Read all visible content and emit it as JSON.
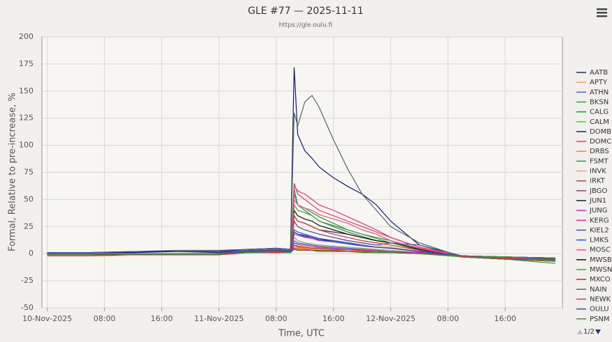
{
  "chart_data": {
    "type": "line",
    "title": "GLE #77 — 2025-11-11",
    "subtitle": "https://gle.oulu.fi",
    "x_label": "Time, UTC",
    "y_label": "Formal, Relative to pre-increase, %",
    "legend_page": "1/2",
    "legend_position": "right",
    "grid": true,
    "xlim": [
      "2025-11-09T23:15",
      "2025-11-13T00:00"
    ],
    "xticks": [
      {
        "value": "2025-11-10T00:00",
        "label": "10-Nov-2025"
      },
      {
        "value": "2025-11-10T08:00",
        "label": "08:00"
      },
      {
        "value": "2025-11-10T16:00",
        "label": "16:00"
      },
      {
        "value": "2025-11-11T00:00",
        "label": "11-Nov-2025"
      },
      {
        "value": "2025-11-11T08:00",
        "label": "08:00"
      },
      {
        "value": "2025-11-11T16:00",
        "label": "16:00"
      },
      {
        "value": "2025-11-12T00:00",
        "label": "12-Nov-2025"
      },
      {
        "value": "2025-11-12T08:00",
        "label": "08:00"
      },
      {
        "value": "2025-11-12T16:00",
        "label": "16:00"
      }
    ],
    "ylim": [
      -50,
      200
    ],
    "yticks": [
      -50,
      -25,
      0,
      25,
      50,
      75,
      100,
      125,
      150,
      175,
      200
    ],
    "x": [
      "2025-11-10T00:00",
      "2025-11-10T06:00",
      "2025-11-10T12:00",
      "2025-11-10T18:00",
      "2025-11-11T00:00",
      "2025-11-11T04:00",
      "2025-11-11T08:00",
      "2025-11-11T10:00",
      "2025-11-11T10:30",
      "2025-11-11T11:00",
      "2025-11-11T12:00",
      "2025-11-11T13:00",
      "2025-11-11T14:00",
      "2025-11-11T16:00",
      "2025-11-11T18:00",
      "2025-11-11T20:00",
      "2025-11-11T22:00",
      "2025-11-12T00:00",
      "2025-11-12T04:00",
      "2025-11-12T10:00",
      "2025-11-12T16:00",
      "2025-11-12T23:00"
    ],
    "series": [
      {
        "name": "AATB",
        "color": "#1f2a6e",
        "values": [
          1,
          1,
          2,
          2,
          1,
          3,
          4,
          3,
          35,
          30,
          28,
          25,
          22,
          20,
          18,
          15,
          12,
          10,
          5,
          -2,
          -4,
          -5
        ]
      },
      {
        "name": "APTY",
        "color": "#f4a460",
        "values": [
          0,
          0,
          0,
          0,
          0,
          2,
          2,
          2,
          10,
          8,
          7,
          6,
          5,
          4,
          3,
          3,
          2,
          2,
          0,
          -2,
          -3,
          -4
        ]
      },
      {
        "name": "ATHN",
        "color": "#5b5bd6",
        "values": [
          -1,
          -1,
          0,
          0,
          0,
          2,
          3,
          2,
          12,
          10,
          9,
          8,
          7,
          6,
          5,
          4,
          3,
          2,
          1,
          -2,
          -3,
          -4
        ]
      },
      {
        "name": "BKSN",
        "color": "#3a9a3a",
        "values": [
          0,
          0,
          0,
          0,
          0,
          1,
          2,
          1,
          8,
          6,
          5,
          4,
          3,
          3,
          2,
          2,
          1,
          1,
          0,
          -3,
          -5,
          -9
        ]
      },
      {
        "name": "CALG",
        "color": "#2e8b3e",
        "values": [
          0,
          0,
          0,
          0,
          0,
          2,
          3,
          2,
          60,
          45,
          40,
          35,
          30,
          25,
          20,
          16,
          12,
          10,
          4,
          -3,
          -5,
          -6
        ]
      },
      {
        "name": "CALM",
        "color": "#6bbb4a",
        "values": [
          0,
          0,
          0,
          0,
          0,
          1,
          2,
          1,
          15,
          12,
          10,
          9,
          8,
          7,
          6,
          5,
          4,
          3,
          1,
          -2,
          -4,
          -5
        ]
      },
      {
        "name": "DOMB",
        "color": "#191970",
        "values": [
          1,
          1,
          1,
          2,
          2,
          4,
          5,
          4,
          172,
          110,
          95,
          88,
          80,
          70,
          62,
          55,
          45,
          30,
          8,
          -3,
          -5,
          -7
        ]
      },
      {
        "name": "DOMC",
        "color": "#e0405a",
        "values": [
          0,
          0,
          0,
          0,
          0,
          3,
          4,
          3,
          65,
          55,
          50,
          45,
          40,
          35,
          30,
          25,
          20,
          15,
          6,
          -2,
          -4,
          -6
        ]
      },
      {
        "name": "DRBS",
        "color": "#f08a30",
        "values": [
          0,
          0,
          0,
          0,
          0,
          1,
          1,
          1,
          6,
          5,
          5,
          4,
          4,
          3,
          3,
          2,
          2,
          1,
          0,
          -2,
          -3,
          -4
        ]
      },
      {
        "name": "FSMT",
        "color": "#2f9a40",
        "values": [
          0,
          0,
          0,
          0,
          0,
          2,
          3,
          2,
          55,
          45,
          42,
          38,
          34,
          28,
          22,
          18,
          15,
          12,
          4,
          -3,
          -5,
          -6
        ]
      },
      {
        "name": "INVK",
        "color": "#f5a050",
        "values": [
          0,
          0,
          0,
          0,
          0,
          2,
          2,
          2,
          30,
          25,
          22,
          20,
          18,
          15,
          12,
          10,
          8,
          6,
          2,
          -3,
          -5,
          -6
        ]
      },
      {
        "name": "IRKT",
        "color": "#d03030",
        "values": [
          -2,
          -2,
          -1,
          -1,
          -1,
          1,
          2,
          1,
          8,
          7,
          6,
          5,
          5,
          4,
          4,
          3,
          2,
          2,
          0,
          -2,
          -3,
          -4
        ]
      },
      {
        "name": "JBGO",
        "color": "#c020c0",
        "values": [
          0,
          0,
          0,
          0,
          0,
          1,
          2,
          1,
          10,
          9,
          8,
          7,
          6,
          5,
          4,
          4,
          3,
          2,
          1,
          -2,
          -3,
          -4
        ]
      },
      {
        "name": "JUN1",
        "color": "#101848",
        "values": [
          0,
          0,
          0,
          0,
          0,
          1,
          2,
          1,
          20,
          18,
          16,
          15,
          13,
          12,
          10,
          8,
          6,
          5,
          2,
          -2,
          -3,
          -4
        ]
      },
      {
        "name": "JUNG",
        "color": "#d030d0",
        "values": [
          0,
          0,
          0,
          0,
          0,
          1,
          2,
          1,
          18,
          17,
          15,
          14,
          12,
          11,
          9,
          7,
          6,
          5,
          2,
          -2,
          -3,
          -4
        ]
      },
      {
        "name": "KERG",
        "color": "#ff2a80",
        "values": [
          0,
          0,
          0,
          0,
          0,
          3,
          4,
          3,
          62,
          58,
          55,
          50,
          45,
          40,
          34,
          28,
          22,
          15,
          6,
          -2,
          -4,
          -6
        ]
      },
      {
        "name": "KIEL2",
        "color": "#4a50a8",
        "values": [
          1,
          1,
          2,
          3,
          3,
          4,
          5,
          4,
          30,
          25,
          22,
          20,
          18,
          15,
          12,
          10,
          8,
          10,
          8,
          -2,
          -4,
          -6
        ]
      },
      {
        "name": "LMKS",
        "color": "#3050d0",
        "values": [
          0,
          0,
          0,
          0,
          0,
          2,
          3,
          2,
          22,
          20,
          18,
          16,
          14,
          12,
          10,
          8,
          6,
          5,
          2,
          -2,
          -4,
          -5
        ]
      },
      {
        "name": "MOSC",
        "color": "#ff4a90",
        "values": [
          0,
          0,
          0,
          0,
          0,
          3,
          3,
          3,
          50,
          45,
          42,
          40,
          36,
          32,
          28,
          22,
          18,
          12,
          5,
          -2,
          -4,
          -5
        ]
      },
      {
        "name": "MWSB",
        "color": "#111111",
        "values": [
          0,
          0,
          0,
          0,
          0,
          2,
          3,
          2,
          40,
          35,
          32,
          30,
          26,
          22,
          18,
          15,
          12,
          10,
          4,
          -3,
          -5,
          -7
        ]
      },
      {
        "name": "MWSN",
        "color": "#40a040",
        "values": [
          0,
          0,
          0,
          0,
          0,
          2,
          3,
          2,
          45,
          40,
          38,
          35,
          30,
          26,
          22,
          18,
          14,
          10,
          3,
          -3,
          -5,
          -7
        ]
      },
      {
        "name": "MXCO",
        "color": "#e02020",
        "values": [
          -1,
          -1,
          -1,
          -1,
          -1,
          1,
          1,
          1,
          5,
          4,
          4,
          3,
          3,
          3,
          2,
          2,
          1,
          1,
          0,
          -2,
          -3,
          -4
        ]
      },
      {
        "name": "NAIN",
        "color": "#4a6a66",
        "values": [
          0,
          0,
          0,
          0,
          0,
          3,
          4,
          3,
          130,
          118,
          140,
          146,
          135,
          105,
          78,
          55,
          40,
          25,
          10,
          -3,
          -5,
          -6
        ]
      },
      {
        "name": "NEWK",
        "color": "#e03838",
        "values": [
          0,
          0,
          0,
          0,
          0,
          2,
          3,
          2,
          35,
          30,
          28,
          25,
          22,
          18,
          15,
          12,
          10,
          8,
          3,
          -3,
          -4,
          -6
        ]
      },
      {
        "name": "OULU",
        "color": "#2a48c8",
        "values": [
          0,
          0,
          0,
          0,
          0,
          2,
          3,
          2,
          20,
          18,
          17,
          15,
          13,
          11,
          9,
          8,
          6,
          5,
          2,
          -2,
          -3,
          -5
        ]
      },
      {
        "name": "PSNM",
        "color": "#2a9a2a",
        "values": [
          0,
          0,
          0,
          0,
          0,
          1,
          2,
          1,
          4,
          3,
          3,
          3,
          2,
          2,
          2,
          1,
          1,
          1,
          0,
          -2,
          -3,
          -4
        ]
      }
    ]
  }
}
